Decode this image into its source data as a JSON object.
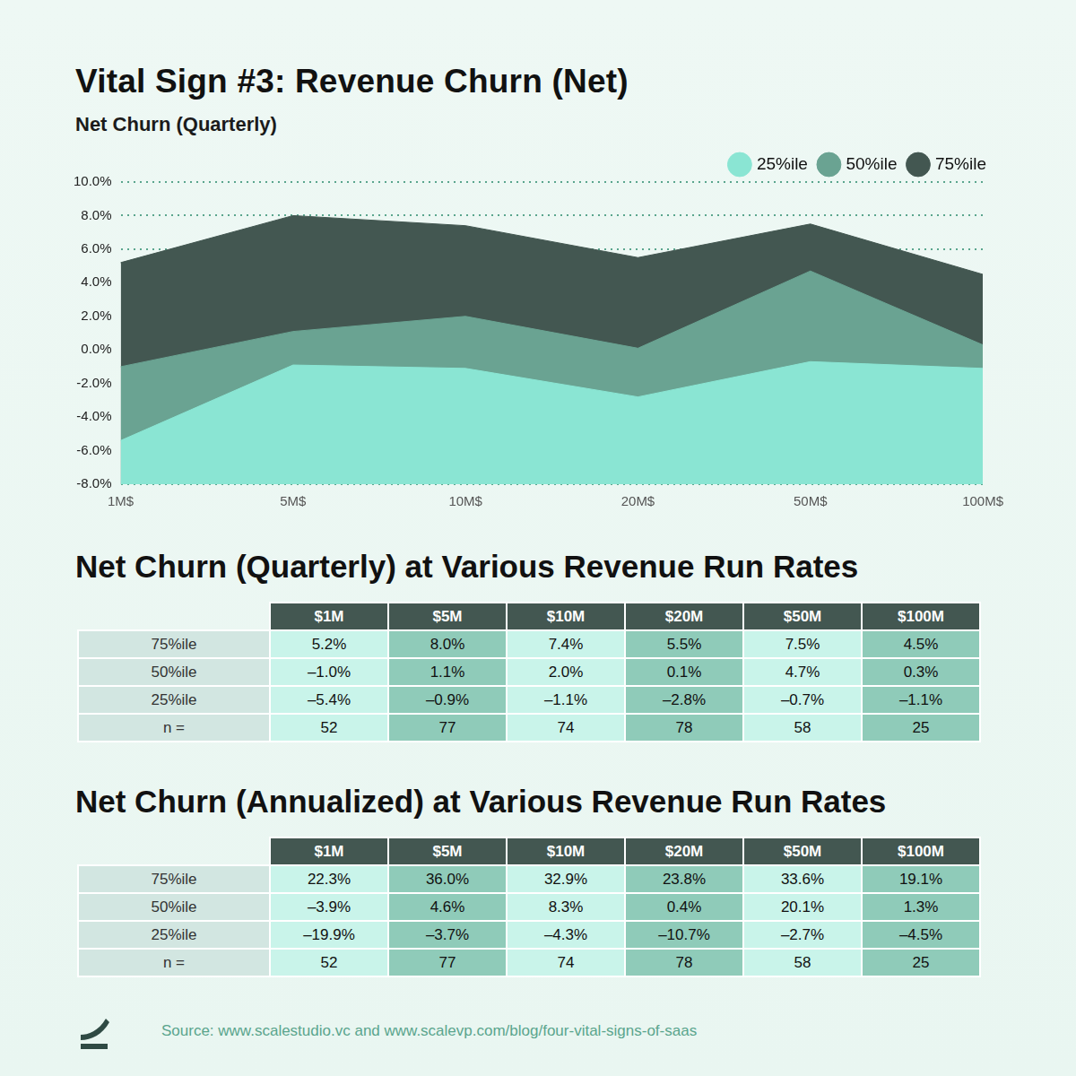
{
  "chart_data": {
    "type": "area",
    "title": "Vital Sign #3: Revenue Churn (Net)",
    "subtitle": "Net Churn (Quarterly)",
    "categories": [
      "1M$",
      "5M$",
      "10M$",
      "20M$",
      "50M$",
      "100M$"
    ],
    "series": [
      {
        "name": "25%ile",
        "color": "#8ae5d3",
        "values": [
          -5.4,
          -0.9,
          -1.1,
          -2.8,
          -0.7,
          -1.1
        ]
      },
      {
        "name": "50%ile",
        "color": "#6aa392",
        "values": [
          -1.0,
          1.1,
          2.0,
          0.1,
          4.7,
          0.3
        ]
      },
      {
        "name": "75%ile",
        "color": "#435751",
        "values": [
          5.2,
          8.0,
          7.4,
          5.5,
          7.5,
          4.5
        ]
      }
    ],
    "ylim": [
      -8,
      10
    ],
    "yticks": [
      {
        "value": -8,
        "label": "-8.0%"
      },
      {
        "value": -6,
        "label": "-6.0%"
      },
      {
        "value": -4,
        "label": "-4.0%"
      },
      {
        "value": -2,
        "label": "-2.0%"
      },
      {
        "value": 0,
        "label": "0.0%"
      },
      {
        "value": 2,
        "label": "2.0%"
      },
      {
        "value": 4,
        "label": "4.0%"
      },
      {
        "value": 6,
        "label": "6.0%"
      },
      {
        "value": 8,
        "label": "8.0%"
      },
      {
        "value": 10,
        "label": "10.0%"
      }
    ],
    "grid": true,
    "legend": "top-right"
  },
  "tables": [
    {
      "title": "Net Churn (Quarterly) at Various Revenue Run Rates",
      "columns": [
        "$1M",
        "$5M",
        "$10M",
        "$20M",
        "$50M",
        "$100M"
      ],
      "rows": [
        {
          "label": "75%ile",
          "cells": [
            "5.2%",
            "8.0%",
            "7.4%",
            "5.5%",
            "7.5%",
            "4.5%"
          ]
        },
        {
          "label": "50%ile",
          "cells": [
            "–1.0%",
            "1.1%",
            "2.0%",
            "0.1%",
            "4.7%",
            "0.3%"
          ]
        },
        {
          "label": "25%ile",
          "cells": [
            "–5.4%",
            "–0.9%",
            "–1.1%",
            "–2.8%",
            "–0.7%",
            "–1.1%"
          ]
        },
        {
          "label": "n =",
          "cells": [
            52,
            77,
            74,
            78,
            58,
            25
          ]
        }
      ]
    },
    {
      "title": "Net Churn (Annualized) at Various Revenue Run Rates",
      "columns": [
        "$1M",
        "$5M",
        "$10M",
        "$20M",
        "$50M",
        "$100M"
      ],
      "rows": [
        {
          "label": "75%ile",
          "cells": [
            "22.3%",
            "36.0%",
            "32.9%",
            "23.8%",
            "33.6%",
            "19.1%"
          ]
        },
        {
          "label": "50%ile",
          "cells": [
            "–3.9%",
            "4.6%",
            "8.3%",
            "0.4%",
            "20.1%",
            "1.3%"
          ]
        },
        {
          "label": "25%ile",
          "cells": [
            "–19.9%",
            "–3.7%",
            "–4.3%",
            "–10.7%",
            "–2.7%",
            "–4.5%"
          ]
        },
        {
          "label": "n =",
          "cells": [
            52,
            77,
            74,
            78,
            58,
            25
          ]
        }
      ]
    }
  ],
  "source": "Source: www.scalestudio.vc and www.scalevp.com/blog/four-vital-signs-of-saas"
}
